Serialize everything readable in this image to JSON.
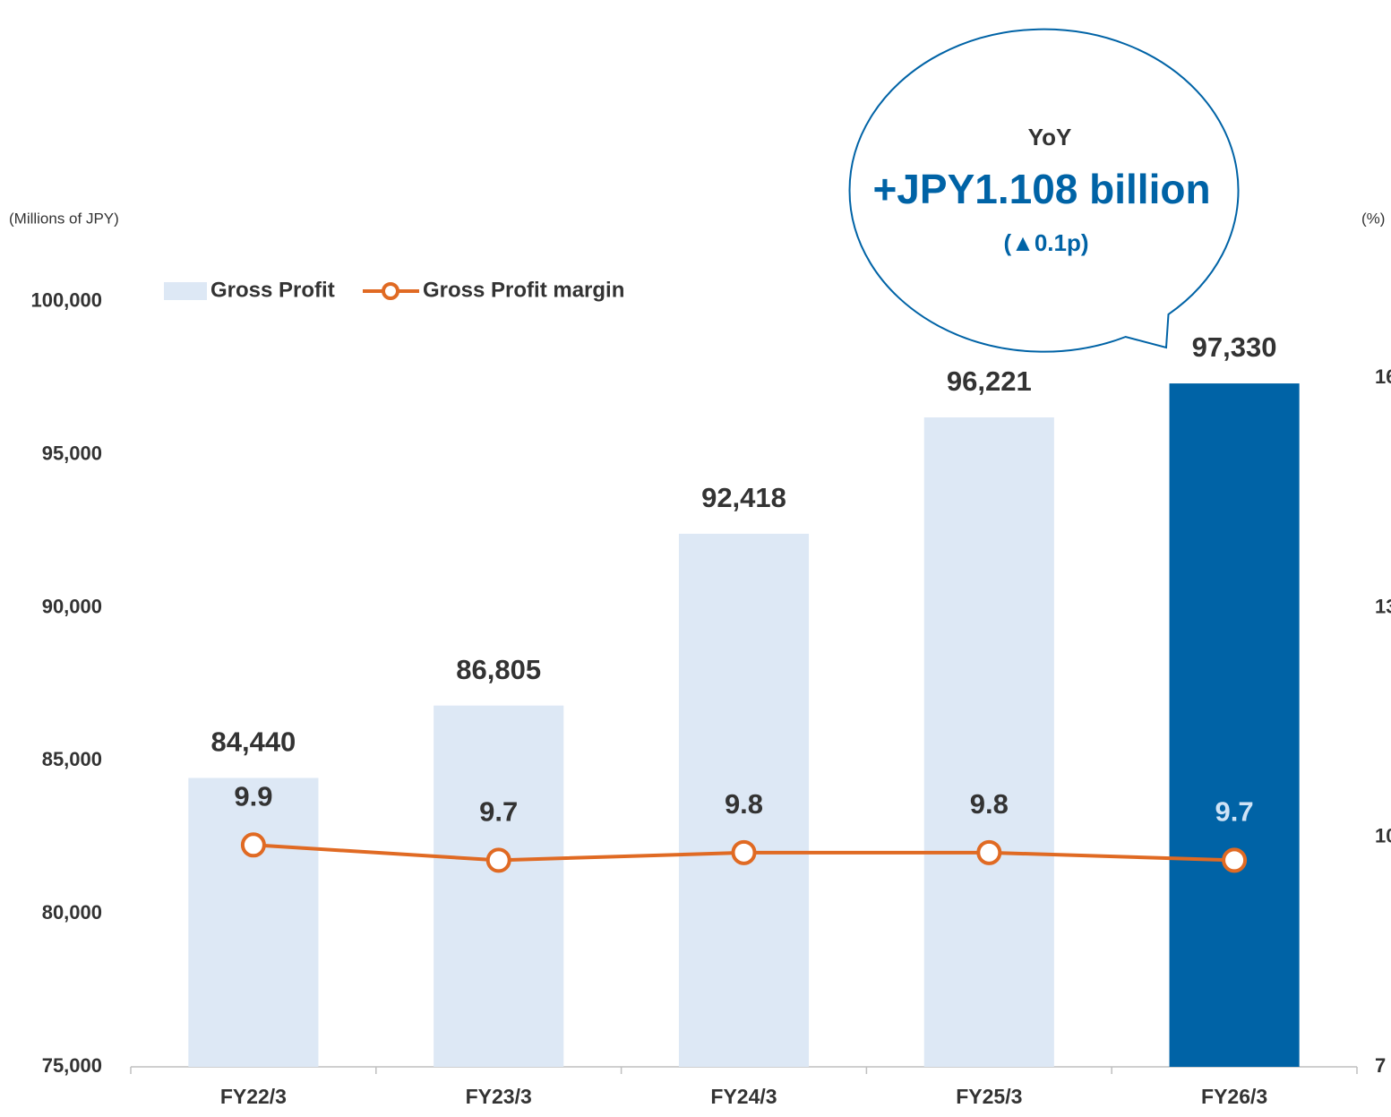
{
  "chart_data": {
    "type": "bar-line",
    "y_axis_label": "(Millions of JPY)",
    "y2_axis_label": "(%)",
    "categories": [
      "FY22/3",
      "FY23/3",
      "FY24/3",
      "FY25/3",
      "FY26/3"
    ],
    "series": [
      {
        "name": "Gross Profit",
        "type": "bar",
        "color": "#dde8f5",
        "colors": [
          "#dde8f5",
          "#dde8f5",
          "#dde8f5",
          "#dde8f5",
          "#0063a6"
        ],
        "values": [
          84440,
          86805,
          92418,
          96221,
          97330
        ],
        "value_labels": [
          "84,440",
          "86,805",
          "92,418",
          "96,221",
          "97,330"
        ]
      },
      {
        "name": "Gross Profit margin",
        "type": "line",
        "axis": "y2",
        "color": "#e06a23",
        "values": [
          9.9,
          9.7,
          9.8,
          9.8,
          9.7
        ]
      }
    ],
    "ylim": [
      75000,
      105000
    ],
    "yticks": [
      {
        "value": 75000,
        "label": "75,000"
      },
      {
        "value": 80000,
        "label": "80,000"
      },
      {
        "value": 85000,
        "label": "85,000"
      },
      {
        "value": 90000,
        "label": "90,000"
      },
      {
        "value": 95000,
        "label": "95,000"
      },
      {
        "value": 100000,
        "label": "100,000"
      }
    ],
    "y2lim": [
      7,
      19
    ],
    "y2ticks": [
      7,
      10,
      13,
      16
    ],
    "legend": "top-left",
    "annotation": {
      "title": "YoY",
      "text": "+JPY1.108 billion",
      "subtext": "(▲0.1p)"
    }
  }
}
